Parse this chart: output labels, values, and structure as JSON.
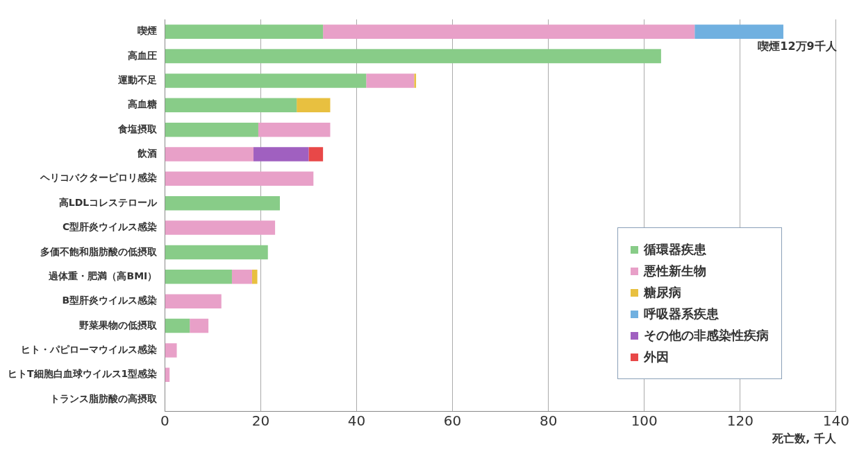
{
  "chart_data": {
    "type": "bar",
    "orientation": "horizontal",
    "stacked": true,
    "categories": [
      "喫煙",
      "高血圧",
      "運動不足",
      "高血糖",
      "食塩摂取",
      "飲酒",
      "ヘリコバクターピロリ感染",
      "高LDLコレステロール",
      "C型肝炎ウイルス感染",
      "多価不飽和脂肪酸の低摂取",
      "過体重・肥満（高BMI）",
      "B型肝炎ウイルス感染",
      "野菜果物の低摂取",
      "ヒト・パピローマウイルス感染",
      "ヒトT細胞白血球ウイルス1型感染",
      "トランス脂肪酸の高摂取"
    ],
    "series": [
      {
        "name": "循環器疾患",
        "color": "#88cc88",
        "values": [
          33,
          103.5,
          42,
          27.5,
          19.5,
          null,
          null,
          24,
          null,
          21.5,
          14,
          null,
          5.2,
          null,
          null,
          0
        ]
      },
      {
        "name": "悪性新生物",
        "color": "#e8a0c8",
        "values": [
          77.5,
          null,
          10,
          null,
          15,
          18.5,
          31,
          null,
          23,
          null,
          4.2,
          11.8,
          3.9,
          2.5,
          1,
          null
        ]
      },
      {
        "name": "糖尿病",
        "color": "#e8c040",
        "values": [
          null,
          null,
          0.4,
          7,
          null,
          null,
          null,
          null,
          null,
          null,
          1.1,
          null,
          null,
          null,
          null,
          null
        ]
      },
      {
        "name": "呼吸器系疾患",
        "color": "#70b0e0",
        "values": [
          18.5,
          null,
          null,
          null,
          null,
          null,
          null,
          null,
          null,
          null,
          null,
          null,
          null,
          null,
          null,
          null
        ]
      },
      {
        "name": "その他の非感染性疾病",
        "color": "#a060c0",
        "values": [
          null,
          null,
          null,
          null,
          null,
          11.5,
          null,
          null,
          null,
          null,
          null,
          null,
          null,
          null,
          null,
          null
        ]
      },
      {
        "name": "外因",
        "color": "#e84848",
        "values": [
          null,
          null,
          null,
          null,
          null,
          3,
          null,
          null,
          null,
          null,
          null,
          null,
          null,
          null,
          null,
          null
        ]
      }
    ],
    "xlim": [
      0,
      140
    ],
    "xticks": [
      0,
      20,
      40,
      60,
      80,
      100,
      120,
      140
    ],
    "xlabel": "死亡数, 千人",
    "grid": "x",
    "legend": "bottom right",
    "annotations": [
      {
        "text": "喫煙12万9千人",
        "x": 129,
        "y": "喫煙"
      }
    ]
  }
}
